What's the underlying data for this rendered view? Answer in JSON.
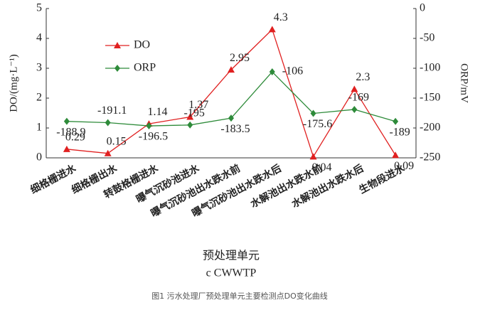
{
  "chart_data": {
    "type": "line",
    "categories": [
      "细格栅进水",
      "细格栅出水",
      "转鼓格栅进水",
      "曝气沉砂池进水",
      "曝气沉砂池出水跌水前",
      "曝气沉砂池出水跌水后",
      "水解池出水跌水前",
      "水解池出水跌水后",
      "生物段进水"
    ],
    "series": [
      {
        "name": "DO",
        "color": "#e02020",
        "marker": "triangle",
        "values": [
          0.29,
          0.15,
          1.14,
          1.37,
          2.95,
          4.3,
          0.04,
          2.3,
          0.09
        ]
      },
      {
        "name": "ORP",
        "color": "#2e8b3a",
        "marker": "diamond",
        "axis": "y2",
        "values": [
          -188.9,
          -191.1,
          -196.5,
          -195,
          -183.5,
          -106,
          -175.6,
          -169,
          -189
        ]
      }
    ],
    "ylabel": "DO/(mg·L⁻¹)",
    "y2label": "ORP/mV",
    "ylim": [
      0,
      5
    ],
    "yticks": [
      0,
      1,
      2,
      3,
      4,
      5
    ],
    "y2lim": [
      -250,
      0
    ],
    "y2ticks": [
      0,
      -50,
      -100,
      -150,
      -200,
      -250
    ],
    "xlabel": "预处理单元",
    "subtitle": "c CWWTP",
    "caption": "图1 污水处理厂预处理单元主要检测点DO变化曲线"
  }
}
